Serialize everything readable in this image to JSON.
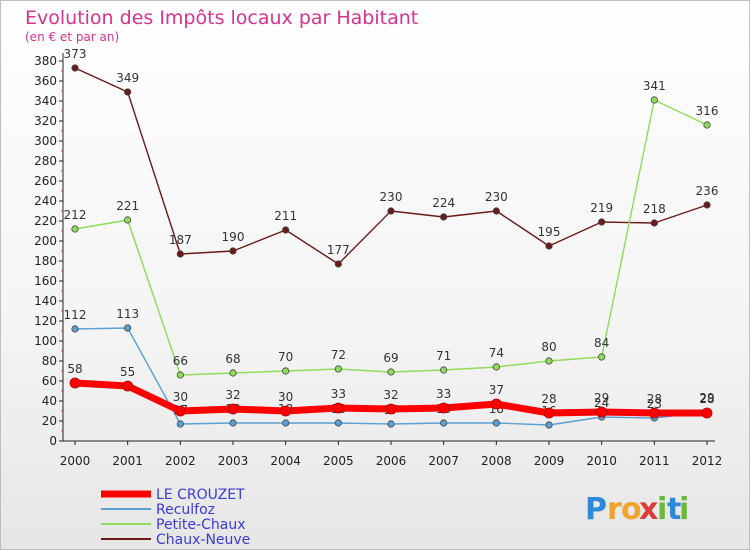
{
  "chart_data": {
    "type": "line",
    "title": "Evolution des Impôts locaux par Habitant",
    "subtitle": "(en € et par an)",
    "xlabel": "",
    "ylabel": "",
    "ylim": [
      0,
      380
    ],
    "y_ticks": [
      "0",
      "20",
      "40",
      "60",
      "80",
      "100",
      "120",
      "140",
      "160",
      "180",
      "200",
      "220",
      "240",
      "260",
      "280",
      "300",
      "320",
      "340",
      "360",
      "380"
    ],
    "categories": [
      "2000",
      "2001",
      "2002",
      "2003",
      "2004",
      "2005",
      "2006",
      "2007",
      "2008",
      "2009",
      "2010",
      "2011",
      "2012"
    ],
    "grid": false,
    "legend_position": "bottom-left",
    "series": [
      {
        "name": "Chaux-Neuve",
        "color": "#6b1a1a",
        "values": [
          373,
          349,
          187,
          190,
          211,
          177,
          230,
          224,
          230,
          195,
          219,
          218,
          236
        ],
        "labels": [
          "373",
          "349",
          "187",
          "190",
          "211",
          "177",
          "230",
          "224",
          "230",
          "195",
          "219",
          "218",
          "236"
        ]
      },
      {
        "name": "Petite-Chaux",
        "color": "#8fdc5a",
        "values": [
          212,
          221,
          66,
          68,
          70,
          72,
          69,
          71,
          74,
          80,
          84,
          341,
          316
        ],
        "labels": [
          "212",
          "221",
          "66",
          "68",
          "70",
          "72",
          "69",
          "71",
          "74",
          "80",
          "84",
          "341",
          "316"
        ]
      },
      {
        "name": "Reculfoz",
        "color": "#5aa0d2",
        "values": [
          112,
          113,
          17,
          18,
          18,
          18,
          17,
          18,
          18,
          16,
          24,
          23,
          29
        ],
        "labels": [
          "112",
          "113",
          "17",
          "18",
          "18",
          "18",
          "17",
          "18",
          "18",
          "16",
          "24",
          "23",
          "29"
        ]
      },
      {
        "name": "LE CROUZET",
        "color": "#ff0000",
        "values": [
          58,
          55,
          30,
          32,
          30,
          33,
          32,
          33,
          37,
          28,
          29,
          28,
          28
        ],
        "labels": [
          "58",
          "55",
          "30",
          "32",
          "30",
          "33",
          "32",
          "33",
          "37",
          "28",
          "29",
          "28",
          "28"
        ]
      }
    ],
    "legend": [
      "LE CROUZET",
      "Reculfoz",
      "Petite-Chaux",
      "Chaux-Neuve"
    ]
  },
  "brand": {
    "letters": [
      "P",
      "r",
      "o",
      "x",
      "i",
      "t",
      "i"
    ],
    "colors": [
      "#2e8ad8",
      "#f0a22a",
      "#f0a22a",
      "#e03a3a",
      "#6ab83a",
      "#2e8ad8",
      "#6ab83a"
    ]
  }
}
